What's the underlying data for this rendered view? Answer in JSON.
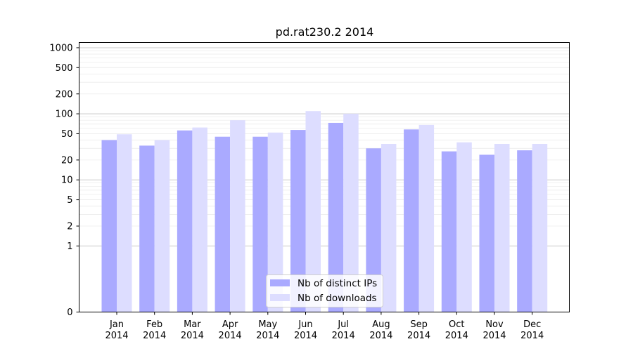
{
  "chart_data": {
    "type": "bar",
    "title": "pd.rat230.2 2014",
    "xlabel": "",
    "ylabel": "",
    "yscale": "symlog",
    "ylim": [
      0,
      1200
    ],
    "yticks": [
      0,
      1,
      2,
      5,
      10,
      20,
      50,
      100,
      200,
      500,
      1000
    ],
    "ytick_labels": [
      "0",
      "1",
      "2",
      "5",
      "10",
      "20",
      "50",
      "100",
      "200",
      "500",
      "1000"
    ],
    "categories": [
      [
        "Jan",
        "2014"
      ],
      [
        "Feb",
        "2014"
      ],
      [
        "Mar",
        "2014"
      ],
      [
        "Apr",
        "2014"
      ],
      [
        "May",
        "2014"
      ],
      [
        "Jun",
        "2014"
      ],
      [
        "Jul",
        "2014"
      ],
      [
        "Aug",
        "2014"
      ],
      [
        "Sep",
        "2014"
      ],
      [
        "Oct",
        "2014"
      ],
      [
        "Nov",
        "2014"
      ],
      [
        "Dec",
        "2014"
      ]
    ],
    "series": [
      {
        "name": "Nb of distinct IPs",
        "color": "#aaaaff",
        "values": [
          40,
          33,
          56,
          45,
          45,
          57,
          73,
          30,
          58,
          27,
          24,
          28
        ]
      },
      {
        "name": "Nb of downloads",
        "color": "#ddddff",
        "values": [
          49,
          40,
          62,
          80,
          52,
          110,
          100,
          35,
          68,
          37,
          35,
          35
        ]
      }
    ],
    "grid": true,
    "legend": "lower center"
  }
}
